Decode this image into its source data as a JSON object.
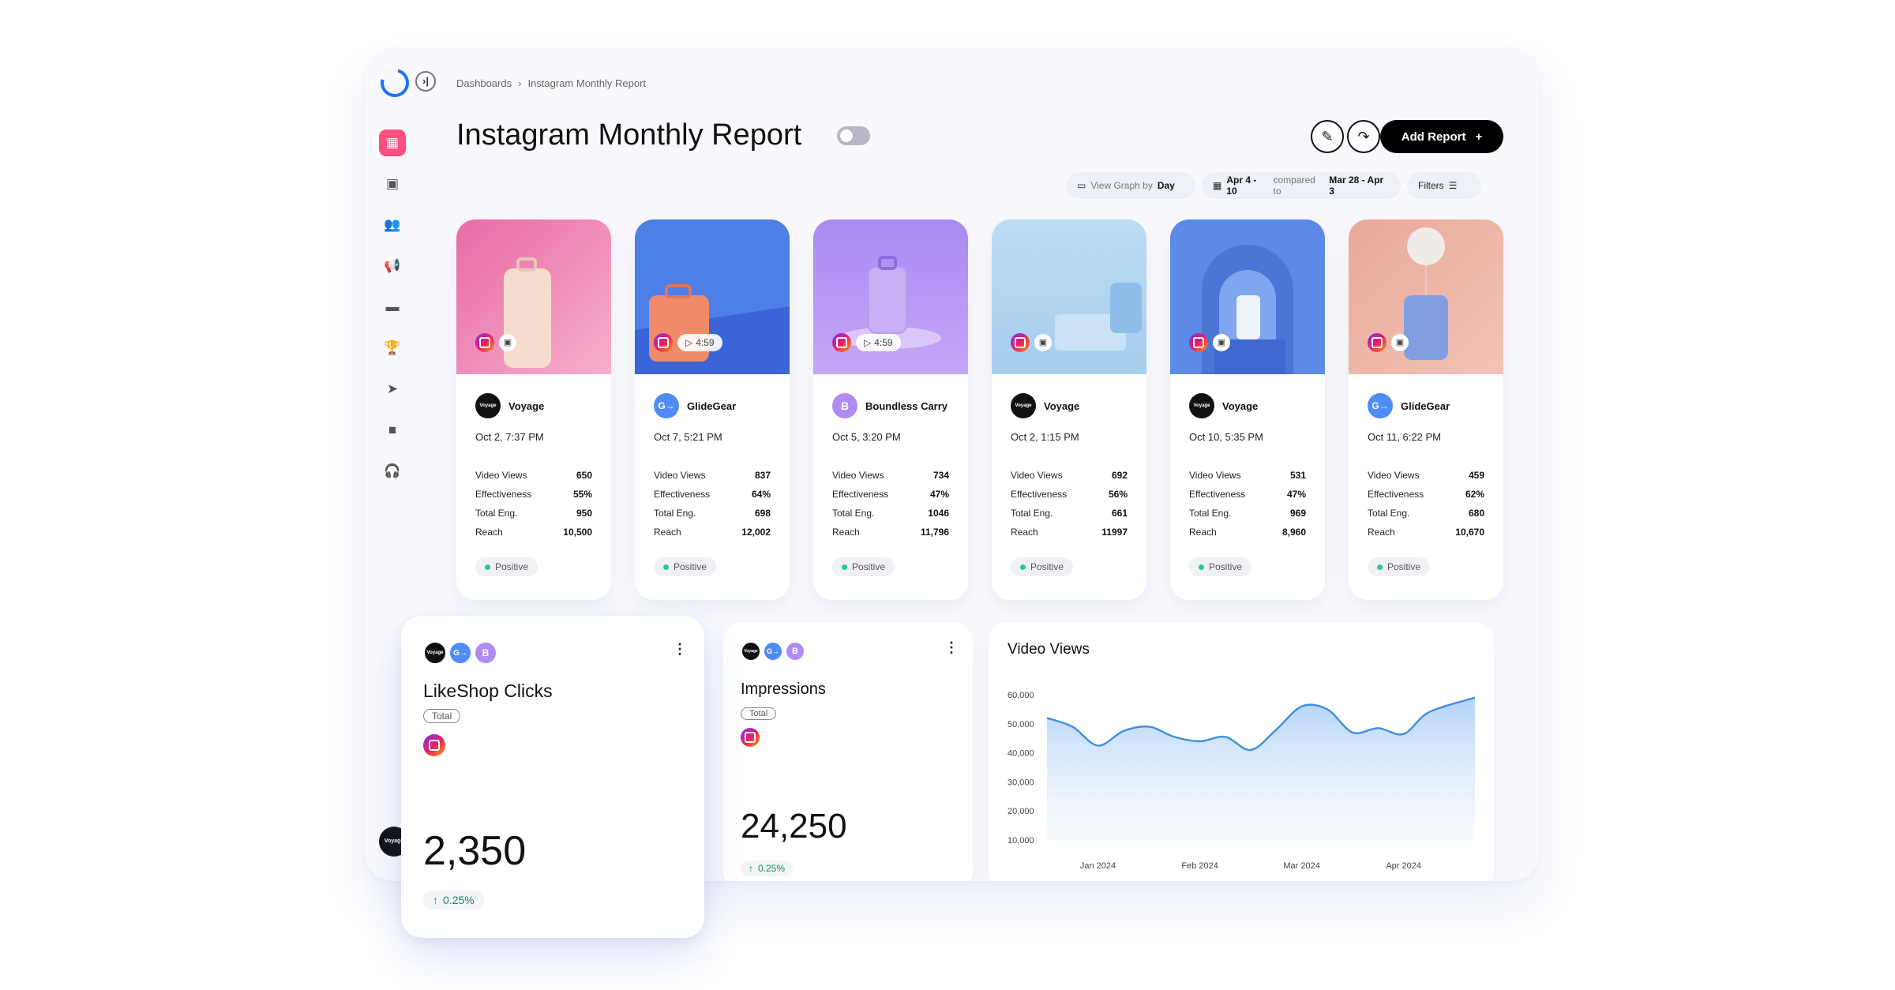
{
  "breadcrumb": {
    "root": "Dashboards",
    "separator": "›",
    "current": "Instagram Monthly Report"
  },
  "page": {
    "title": "Instagram Monthly Report"
  },
  "header": {
    "add_report_label": "Add Report",
    "add_icon": "+"
  },
  "toolbar": {
    "view_graph_label": "View Graph by",
    "view_graph_value": "Day",
    "date_range": "Apr 4 - 10",
    "compared_to_label": "compared to",
    "compare_range": "Mar 28 - Apr 3",
    "filters_label": "Filters"
  },
  "metric_labels": {
    "views": "Video Views",
    "effectiveness": "Effectiveness",
    "engagement": "Total Eng.",
    "reach": "Reach"
  },
  "posts": [
    {
      "brand": "Voyage",
      "avatar": "Voyage",
      "date": "Oct 2, 7:37 PM",
      "duration": "",
      "views": "650",
      "effectiveness": "55%",
      "engagement": "950",
      "reach": "10,500",
      "sentiment": "Positive"
    },
    {
      "brand": "GlideGear",
      "avatar": "G→",
      "date": "Oct 7, 5:21 PM",
      "duration": "4:59",
      "views": "837",
      "effectiveness": "64%",
      "engagement": "698",
      "reach": "12,002",
      "sentiment": "Positive"
    },
    {
      "brand": "Boundless Carry",
      "avatar": "B",
      "date": "Oct 5, 3:20 PM",
      "duration": "4:59",
      "views": "734",
      "effectiveness": "47%",
      "engagement": "1046",
      "reach": "11,796",
      "sentiment": "Positive"
    },
    {
      "brand": "Voyage",
      "avatar": "Voyage",
      "date": "Oct 2, 1:15 PM",
      "duration": "",
      "views": "692",
      "effectiveness": "56%",
      "engagement": "661",
      "reach": "11997",
      "sentiment": "Positive"
    },
    {
      "brand": "Voyage",
      "avatar": "Voyage",
      "date": "Oct 10, 5:35 PM",
      "duration": "",
      "views": "531",
      "effectiveness": "47%",
      "engagement": "969",
      "reach": "8,960",
      "sentiment": "Positive"
    },
    {
      "brand": "GlideGear",
      "avatar": "G→",
      "date": "Oct 11, 6:22 PM",
      "duration": "",
      "views": "459",
      "effectiveness": "62%",
      "engagement": "680",
      "reach": "10,670",
      "sentiment": "Positive"
    }
  ],
  "likeshop": {
    "title": "LikeShop Clicks",
    "tag": "Total",
    "value": "2,350",
    "delta": "0.25%"
  },
  "impressions": {
    "title": "Impressions",
    "tag": "Total",
    "value": "24,250",
    "delta": "0.25%"
  },
  "sidebar": {
    "user_avatar": "Voyage"
  },
  "colors": {
    "accent": "#ff4f7f",
    "brand_blue": "#1f6fff",
    "positive": "#20c997",
    "line": "#3f8ee0"
  },
  "chart_data": {
    "type": "area",
    "title": "Video Views",
    "xlabel": "",
    "ylabel": "",
    "ylim": [
      10000,
      60000
    ],
    "yticks": [
      "60,000",
      "50,000",
      "40,000",
      "30,000",
      "20,000",
      "10,000"
    ],
    "ytick_values": [
      60000,
      50000,
      40000,
      30000,
      20000,
      10000
    ],
    "xticks": [
      "Jan 2024",
      "Feb 2024",
      "Mar 2024",
      "Apr 2024"
    ],
    "xtick_positions": [
      0.5,
      1.5,
      2.5,
      3.5
    ],
    "x": [
      0,
      0.25,
      0.5,
      0.75,
      1.0,
      1.25,
      1.5,
      1.75,
      2.0,
      2.25,
      2.5,
      2.75,
      3.0,
      3.25,
      3.5,
      3.75,
      4.2
    ],
    "values": [
      52000,
      49000,
      42500,
      47500,
      49000,
      45500,
      44000,
      45500,
      41000,
      48000,
      56000,
      55000,
      47000,
      48500,
      46500,
      54000,
      59000
    ]
  }
}
